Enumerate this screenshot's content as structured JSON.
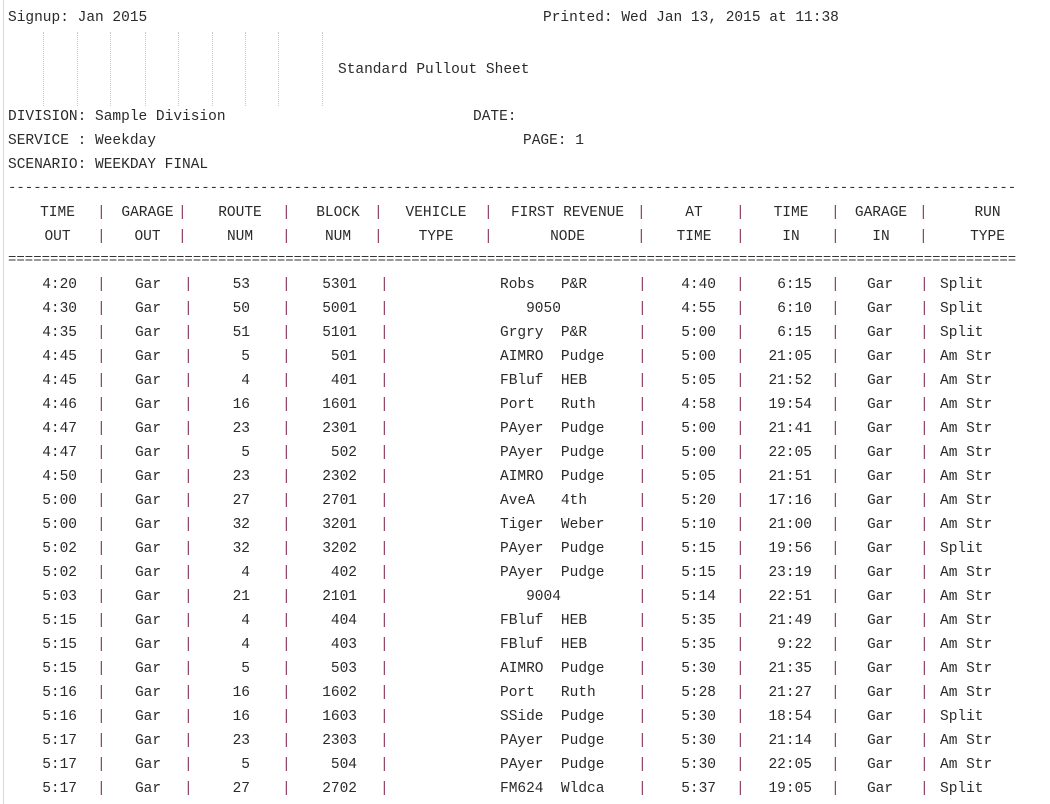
{
  "header": {
    "signup": "Signup: Jan 2015",
    "printed": "Printed: Wed Jan 13, 2015 at 11:38",
    "title": "Standard Pullout Sheet",
    "division": "DIVISION: Sample Division",
    "date": "DATE:",
    "service": "SERVICE : Weekday",
    "page": "PAGE: 1",
    "scenario": "SCENARIO: WEEKDAY FINAL"
  },
  "columns": [
    {
      "line1": "TIME",
      "line2": "OUT"
    },
    {
      "line1": "GARAGE",
      "line2": "OUT"
    },
    {
      "line1": "ROUTE",
      "line2": "NUM"
    },
    {
      "line1": "BLOCK",
      "line2": "NUM"
    },
    {
      "line1": "VEHICLE",
      "line2": "TYPE"
    },
    {
      "line1": "FIRST REVENUE",
      "line2": "NODE"
    },
    {
      "line1": "AT",
      "line2": "TIME"
    },
    {
      "line1": "TIME",
      "line2": "IN"
    },
    {
      "line1": "GARAGE",
      "line2": "IN"
    },
    {
      "line1": "RUN",
      "line2": "TYPE"
    }
  ],
  "rows": [
    [
      "4:20",
      "Gar",
      "53",
      "5301",
      "",
      "Robs   P&R",
      "4:40",
      "6:15",
      "Gar",
      "Split"
    ],
    [
      "4:30",
      "Gar",
      "50",
      "5001",
      "",
      "   9050",
      "4:55",
      "6:10",
      "Gar",
      "Split"
    ],
    [
      "4:35",
      "Gar",
      "51",
      "5101",
      "",
      "Grgry  P&R",
      "5:00",
      "6:15",
      "Gar",
      "Split"
    ],
    [
      "4:45",
      "Gar",
      "5",
      "501",
      "",
      "AIMRO  Pudge",
      "5:00",
      "21:05",
      "Gar",
      "Am Str"
    ],
    [
      "4:45",
      "Gar",
      "4",
      "401",
      "",
      "FBluf  HEB",
      "5:05",
      "21:52",
      "Gar",
      "Am Str"
    ],
    [
      "4:46",
      "Gar",
      "16",
      "1601",
      "",
      "Port   Ruth",
      "4:58",
      "19:54",
      "Gar",
      "Am Str"
    ],
    [
      "4:47",
      "Gar",
      "23",
      "2301",
      "",
      "PAyer  Pudge",
      "5:00",
      "21:41",
      "Gar",
      "Am Str"
    ],
    [
      "4:47",
      "Gar",
      "5",
      "502",
      "",
      "PAyer  Pudge",
      "5:00",
      "22:05",
      "Gar",
      "Am Str"
    ],
    [
      "4:50",
      "Gar",
      "23",
      "2302",
      "",
      "AIMRO  Pudge",
      "5:05",
      "21:51",
      "Gar",
      "Am Str"
    ],
    [
      "5:00",
      "Gar",
      "27",
      "2701",
      "",
      "AveA   4th",
      "5:20",
      "17:16",
      "Gar",
      "Am Str"
    ],
    [
      "5:00",
      "Gar",
      "32",
      "3201",
      "",
      "Tiger  Weber",
      "5:10",
      "21:00",
      "Gar",
      "Am Str"
    ],
    [
      "5:02",
      "Gar",
      "32",
      "3202",
      "",
      "PAyer  Pudge",
      "5:15",
      "19:56",
      "Gar",
      "Split"
    ],
    [
      "5:02",
      "Gar",
      "4",
      "402",
      "",
      "PAyer  Pudge",
      "5:15",
      "23:19",
      "Gar",
      "Am Str"
    ],
    [
      "5:03",
      "Gar",
      "21",
      "2101",
      "",
      "   9004",
      "5:14",
      "22:51",
      "Gar",
      "Am Str"
    ],
    [
      "5:15",
      "Gar",
      "4",
      "404",
      "",
      "FBluf  HEB",
      "5:35",
      "21:49",
      "Gar",
      "Am Str"
    ],
    [
      "5:15",
      "Gar",
      "4",
      "403",
      "",
      "FBluf  HEB",
      "5:35",
      "9:22",
      "Gar",
      "Am Str"
    ],
    [
      "5:15",
      "Gar",
      "5",
      "503",
      "",
      "AIMRO  Pudge",
      "5:30",
      "21:35",
      "Gar",
      "Am Str"
    ],
    [
      "5:16",
      "Gar",
      "16",
      "1602",
      "",
      "Port   Ruth",
      "5:28",
      "21:27",
      "Gar",
      "Am Str"
    ],
    [
      "5:16",
      "Gar",
      "16",
      "1603",
      "",
      "SSide  Pudge",
      "5:30",
      "18:54",
      "Gar",
      "Split"
    ],
    [
      "5:17",
      "Gar",
      "23",
      "2303",
      "",
      "PAyer  Pudge",
      "5:30",
      "21:14",
      "Gar",
      "Am Str"
    ],
    [
      "5:17",
      "Gar",
      "5",
      "504",
      "",
      "PAyer  Pudge",
      "5:30",
      "22:05",
      "Gar",
      "Am Str"
    ],
    [
      "5:17",
      "Gar",
      "27",
      "2702",
      "",
      "FM624  Wldca",
      "5:37",
      "19:05",
      "Gar",
      "Split"
    ]
  ],
  "colors": {
    "text": "#2a2a2a",
    "separator": "#8a3d63"
  }
}
